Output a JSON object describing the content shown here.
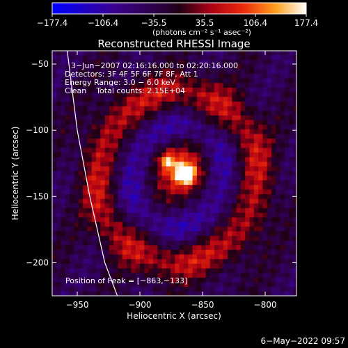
{
  "chart_data": {
    "type": "heatmap",
    "title": "Reconstructed RHESSI Image",
    "xlabel": "Heliocentric X (arcsec)",
    "ylabel": "Heliocentric Y (arcsec)",
    "xlim": [
      -970,
      -775
    ],
    "ylim": [
      -225,
      -40
    ],
    "x_ticks": [
      -950,
      -900,
      -850,
      -800
    ],
    "y_ticks": [
      -50,
      -100,
      -150,
      -200
    ],
    "x_tick_labels": [
      "−950",
      "−900",
      "−850",
      "−800"
    ],
    "y_tick_labels": [
      "−50",
      "−100",
      "−150",
      "−200"
    ],
    "colorbar": {
      "min": -177.4,
      "max": 177.4,
      "tick_values": [
        -177.4,
        -106.4,
        -35.5,
        35.5,
        106.4,
        177.4
      ],
      "tick_labels": [
        "−177.4",
        "−106.4",
        "−35.5",
        "35.5",
        "106.4",
        "177.4"
      ],
      "units_label": "(photons cm⁻² s⁻¹ asec⁻²)"
    },
    "annotations": [
      "3−Jun−2007 02:16:16.000 to 02:20:16.000",
      "Detectors: 3F 4F 5F 6F 7F 8F, Att 1",
      "Energy Range: 3.0 − 6.0 keV",
      "Clean    Total counts: 2.15E+04"
    ],
    "peak_label": "Position of Peak = [−863,−133]",
    "peak": {
      "x": -863,
      "y": -133,
      "value": 177.4
    },
    "limb_curve": [
      [
        -958,
        -40
      ],
      [
        -950,
        -100
      ],
      [
        -940,
        -150
      ],
      [
        -928,
        -200
      ],
      [
        -918,
        -225
      ]
    ],
    "sources": [
      {
        "kind": "core",
        "x": -863,
        "y": -133,
        "amplitude": 177,
        "sigma": 6
      },
      {
        "kind": "core",
        "x": -878,
        "y": -123,
        "amplitude": 120,
        "sigma": 5
      },
      {
        "kind": "halo",
        "x": -868,
        "y": -130,
        "amplitude": 95,
        "sigma": 16
      },
      {
        "kind": "ring",
        "x": -870,
        "y": -135,
        "radius": 65,
        "amplitude": 85,
        "width": 14
      },
      {
        "kind": "ring",
        "x": -870,
        "y": -135,
        "radius": 38,
        "amplitude": -60,
        "width": 12
      }
    ]
  },
  "footer": {
    "timestamp": "6−May−2022 09:57"
  }
}
